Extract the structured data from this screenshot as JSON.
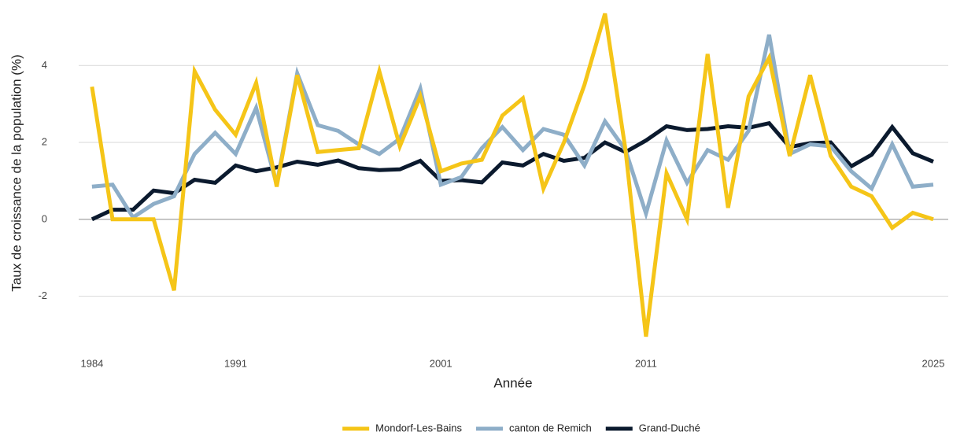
{
  "chart_data": {
    "type": "line",
    "xlabel": "Année",
    "ylabel": "Taux de croissance de la population (%)",
    "x": [
      1984,
      1985,
      1986,
      1987,
      1988,
      1989,
      1990,
      1991,
      1992,
      1993,
      1994,
      1995,
      1996,
      1997,
      1998,
      1999,
      2000,
      2001,
      2002,
      2003,
      2004,
      2005,
      2006,
      2007,
      2008,
      2009,
      2010,
      2011,
      2012,
      2013,
      2014,
      2015,
      2016,
      2017,
      2018,
      2019,
      2020,
      2021,
      2022,
      2023,
      2024,
      2025
    ],
    "series": [
      {
        "name": "Mondorf-Les-Bains",
        "color": "#f5c518",
        "values": [
          3.45,
          0,
          0,
          0,
          -1.85,
          3.85,
          2.85,
          2.2,
          3.55,
          0.85,
          3.75,
          1.75,
          1.8,
          1.85,
          3.85,
          1.9,
          3.2,
          1.25,
          1.45,
          1.55,
          2.7,
          3.15,
          0.8,
          2.0,
          3.5,
          5.35,
          1.8,
          -3.05,
          1.2,
          0.0,
          4.3,
          0.3,
          3.2,
          4.2,
          1.65,
          3.75,
          1.65,
          0.85,
          0.6,
          -0.22,
          0.17,
          0.0
        ]
      },
      {
        "name": "canton de Remich",
        "color": "#8eaec8",
        "values": [
          0.85,
          0.9,
          0.05,
          0.4,
          0.6,
          1.7,
          2.25,
          1.7,
          2.9,
          0.9,
          3.8,
          2.45,
          2.3,
          1.95,
          1.7,
          2.1,
          3.4,
          0.9,
          1.1,
          1.85,
          2.4,
          1.8,
          2.35,
          2.2,
          1.4,
          2.55,
          1.8,
          0.15,
          2.05,
          0.95,
          1.8,
          1.55,
          2.3,
          4.8,
          1.7,
          1.95,
          1.9,
          1.25,
          0.8,
          1.95,
          0.85,
          0.9
        ]
      },
      {
        "name": "Grand-Duché",
        "color": "#0b1a2e",
        "values": [
          0,
          0.25,
          0.25,
          0.75,
          0.68,
          1.03,
          0.95,
          1.4,
          1.25,
          1.35,
          1.5,
          1.42,
          1.53,
          1.33,
          1.28,
          1.3,
          1.52,
          1.0,
          1.02,
          0.96,
          1.48,
          1.4,
          1.7,
          1.52,
          1.6,
          2.0,
          1.75,
          2.05,
          2.42,
          2.32,
          2.35,
          2.42,
          2.38,
          2.5,
          1.88,
          1.98,
          2.0,
          1.38,
          1.68,
          2.4,
          1.72,
          1.5
        ]
      }
    ],
    "xlim": [
      1983.35,
      2025.73
    ],
    "xticks": [
      1984,
      1991,
      2001,
      2011,
      2025
    ],
    "ylim": [
      -3.4,
      5.5
    ],
    "yticks": [
      -2,
      0,
      2,
      4
    ],
    "grid": true,
    "legend": "bottom"
  }
}
